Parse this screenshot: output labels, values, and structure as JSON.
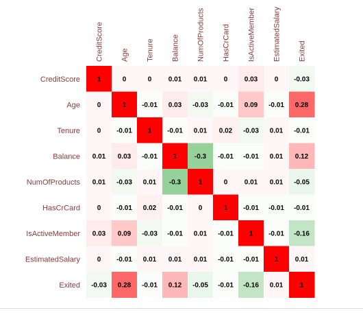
{
  "chart_data": {
    "type": "heatmap",
    "title": "",
    "variables": [
      "CreditScore",
      "Age",
      "Tenure",
      "Balance",
      "NumOfProducts",
      "HasCrCard",
      "IsActiveMember",
      "EstimatedSalary",
      "Exited"
    ],
    "matrix": [
      [
        1,
        0,
        0,
        0.01,
        0.01,
        0,
        0.03,
        0,
        -0.03
      ],
      [
        0,
        1,
        -0.01,
        0.03,
        -0.03,
        -0.01,
        0.09,
        -0.01,
        0.28
      ],
      [
        0,
        -0.01,
        1,
        -0.01,
        0.01,
        0.02,
        -0.03,
        0.01,
        -0.01
      ],
      [
        0.01,
        0.03,
        -0.01,
        1,
        -0.3,
        -0.01,
        -0.01,
        0.01,
        0.12
      ],
      [
        0.01,
        -0.03,
        0.01,
        -0.3,
        1,
        0,
        0.01,
        0.01,
        -0.05
      ],
      [
        0,
        -0.01,
        0.02,
        -0.01,
        0,
        1,
        -0.01,
        -0.01,
        -0.01
      ],
      [
        0.03,
        0.09,
        -0.03,
        -0.01,
        0.01,
        -0.01,
        1,
        -0.01,
        -0.16
      ],
      [
        0,
        -0.01,
        0.01,
        0.01,
        0.01,
        -0.01,
        -0.01,
        1,
        0.01
      ],
      [
        -0.03,
        0.28,
        -0.01,
        0.12,
        -0.05,
        -0.01,
        -0.16,
        0.01,
        1
      ]
    ],
    "value_range": [
      -1,
      1
    ],
    "colors": {
      "positive": "#ff0000",
      "negative": "#4caf50",
      "neutral": "#ffffff",
      "label_text": "#8b3a3a",
      "value_text": "#000000"
    },
    "legend": "none",
    "grid": false
  }
}
